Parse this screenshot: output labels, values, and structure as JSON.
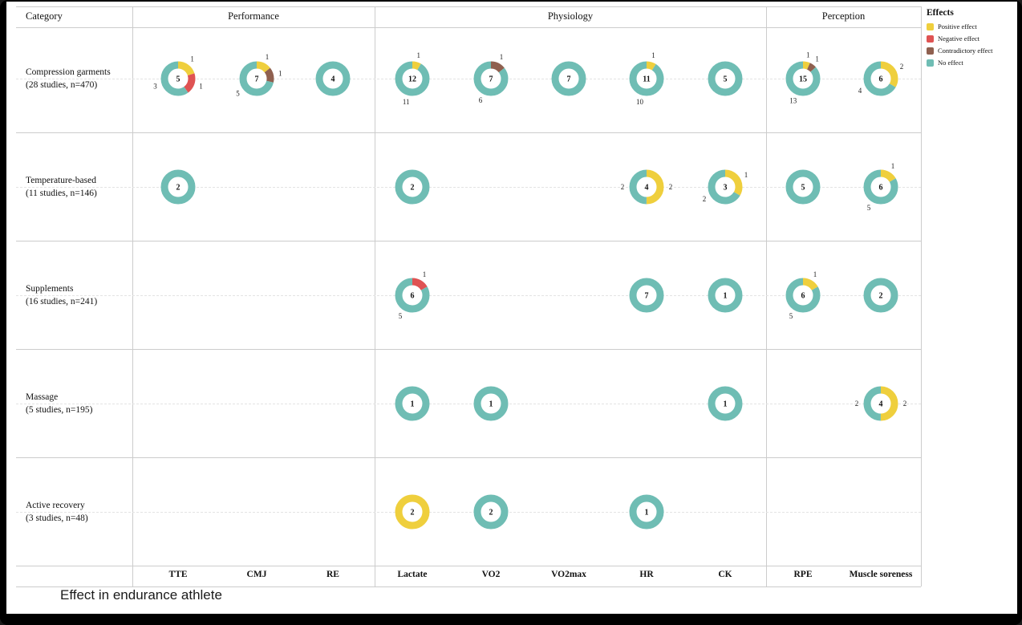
{
  "caption": "Effect in endurance athlete",
  "legend": {
    "title": "Effects",
    "items": [
      {
        "key": "positive",
        "label": "Positive effect",
        "color": "#EFCF3D"
      },
      {
        "key": "negative",
        "label": "Negative effect",
        "color": "#DF5353"
      },
      {
        "key": "contradictory",
        "label": "Contradictory effect",
        "color": "#8F604F"
      },
      {
        "key": "none",
        "label": "No effect",
        "color": "#6FBDB4"
      }
    ]
  },
  "header": {
    "category": "Category",
    "groups": [
      {
        "label": "Performance",
        "columns": [
          "TTE",
          "CMJ",
          "RE"
        ]
      },
      {
        "label": "Physiology",
        "columns": [
          "Lactate",
          "VO2",
          "VO2max",
          "HR",
          "CK"
        ]
      },
      {
        "label": "Perception",
        "columns": [
          "RPE",
          "Muscle soreness"
        ]
      }
    ]
  },
  "chart_data": {
    "type": "donut-matrix",
    "title": "Effect in endurance athlete",
    "effect_keys": [
      "positive",
      "negative",
      "contradictory",
      "none"
    ],
    "columns": [
      "TTE",
      "CMJ",
      "RE",
      "Lactate",
      "VO2",
      "VO2max",
      "HR",
      "CK",
      "RPE",
      "Muscle soreness"
    ],
    "rows": [
      {
        "category": "Compression garments",
        "subtitle": "(28 studies, n=470)",
        "cells": [
          {
            "column": "TTE",
            "total": 5,
            "positive": 1,
            "negative": 1,
            "none": 3
          },
          {
            "column": "CMJ",
            "total": 7,
            "positive": 1,
            "contradictory": 1,
            "none": 5
          },
          {
            "column": "RE",
            "total": 4,
            "none": 4
          },
          {
            "column": "Lactate",
            "total": 12,
            "positive": 1,
            "none": 11
          },
          {
            "column": "VO2",
            "total": 7,
            "contradictory": 1,
            "none": 6
          },
          {
            "column": "VO2max",
            "total": 7,
            "none": 7
          },
          {
            "column": "HR",
            "total": 11,
            "positive": 1,
            "none": 10
          },
          {
            "column": "CK",
            "total": 5,
            "none": 5
          },
          {
            "column": "RPE",
            "total": 15,
            "positive": 1,
            "contradictory": 1,
            "none": 13
          },
          {
            "column": "Muscle soreness",
            "total": 6,
            "positive": 2,
            "none": 4
          }
        ]
      },
      {
        "category": "Temperature-based",
        "subtitle": "(11 studies, n=146)",
        "cells": [
          {
            "column": "TTE",
            "total": 2,
            "none": 2
          },
          {
            "column": "Lactate",
            "total": 2,
            "none": 2
          },
          {
            "column": "HR",
            "total": 4,
            "positive": 2,
            "none": 2
          },
          {
            "column": "CK",
            "total": 3,
            "positive": 1,
            "none": 2
          },
          {
            "column": "RPE",
            "total": 5,
            "none": 5
          },
          {
            "column": "Muscle soreness",
            "total": 6,
            "positive": 1,
            "none": 5
          }
        ]
      },
      {
        "category": "Supplements",
        "subtitle": "(16 studies, n=241)",
        "cells": [
          {
            "column": "Lactate",
            "total": 6,
            "negative": 1,
            "none": 5
          },
          {
            "column": "HR",
            "total": 7,
            "none": 7
          },
          {
            "column": "CK",
            "total": 1,
            "none": 1
          },
          {
            "column": "RPE",
            "total": 6,
            "positive": 1,
            "none": 5
          },
          {
            "column": "Muscle soreness",
            "total": 2,
            "none": 2
          }
        ]
      },
      {
        "category": "Massage",
        "subtitle": "(5 studies, n=195)",
        "cells": [
          {
            "column": "Lactate",
            "total": 1,
            "none": 1
          },
          {
            "column": "VO2",
            "total": 1,
            "none": 1
          },
          {
            "column": "CK",
            "total": 1,
            "none": 1
          },
          {
            "column": "Muscle soreness",
            "total": 4,
            "positive": 2,
            "none": 2
          }
        ]
      },
      {
        "category": "Active recovery",
        "subtitle": "(3 studies, n=48)",
        "cells": [
          {
            "column": "Lactate",
            "total": 2,
            "positive": 2
          },
          {
            "column": "VO2",
            "total": 2,
            "none": 2
          },
          {
            "column": "HR",
            "total": 1,
            "none": 1
          }
        ]
      }
    ]
  }
}
